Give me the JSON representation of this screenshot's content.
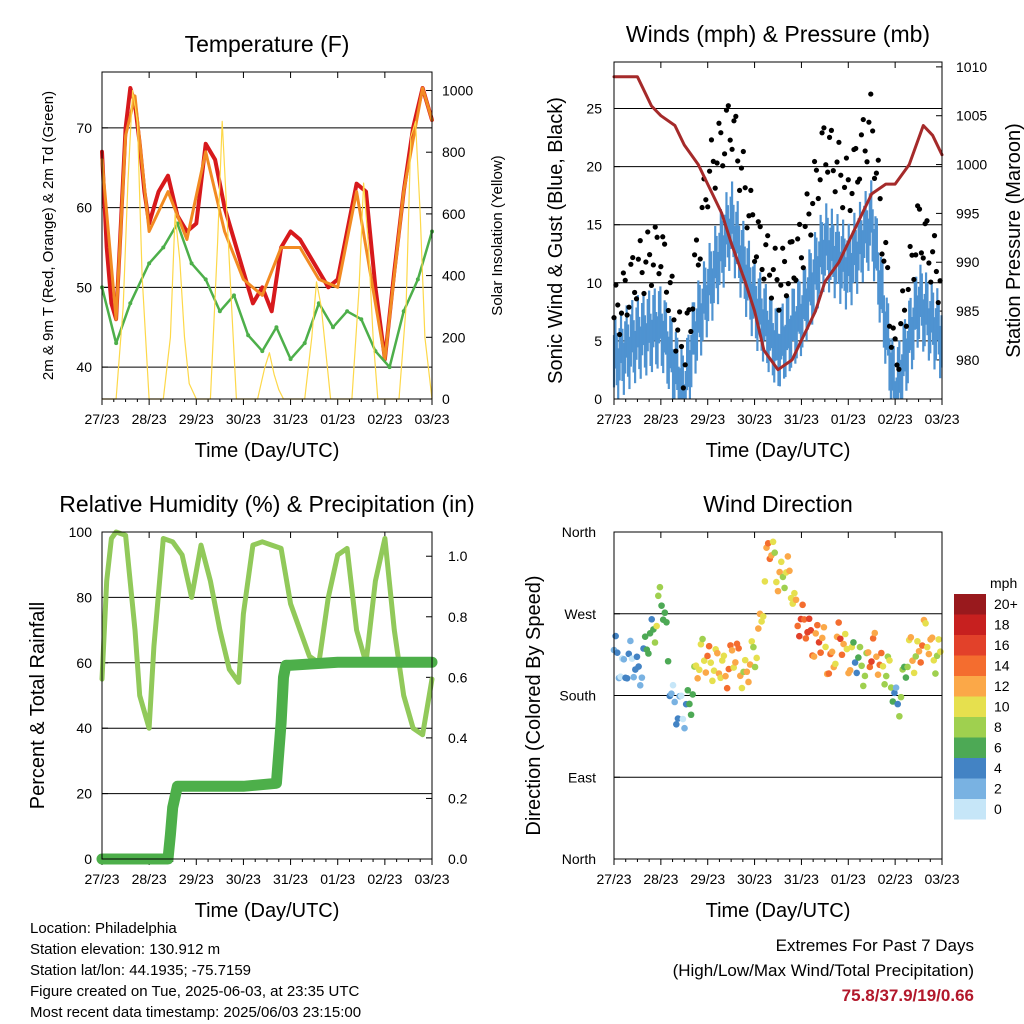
{
  "chart_data": [
    {
      "type": "line",
      "title": "Temperature (F)",
      "xlabel": "Time (Day/UTC)",
      "ylabel": "2m & 9m T (Red, Orange) & 2m Td (Green)",
      "y2label": "Solar Insolation (Yellow)",
      "ylim": [
        36,
        77
      ],
      "y2lim": [
        0,
        1060
      ],
      "yticks": [
        40,
        50,
        60,
        70
      ],
      "y2ticks": [
        0,
        200,
        400,
        600,
        800,
        1000
      ],
      "grid": true,
      "xticks": [
        "27/23",
        "28/23",
        "29/23",
        "30/23",
        "31/23",
        "01/23",
        "02/23",
        "03/23"
      ],
      "series": [
        {
          "axis": "y",
          "color": "#d7191c",
          "x": [
            0,
            0.1,
            0.2,
            0.3,
            0.4,
            0.5,
            0.6,
            0.7,
            0.8,
            0.9,
            1,
            1.2,
            1.4,
            1.6,
            1.8,
            2,
            2.2,
            2.4,
            2.6,
            2.8,
            3,
            3.2,
            3.4,
            3.6,
            3.8,
            4,
            4.2,
            4.4,
            4.6,
            4.8,
            5,
            5.2,
            5.4,
            5.6,
            5.8,
            6,
            6.2,
            6.4,
            6.6,
            6.8,
            7
          ],
          "y": [
            67,
            55,
            48,
            46,
            58,
            70,
            75,
            73,
            68,
            62,
            58,
            62,
            64,
            59,
            57,
            58,
            68,
            66,
            60,
            56,
            52,
            48,
            50,
            47,
            55,
            57,
            56,
            54,
            52,
            50,
            51,
            57,
            63,
            62,
            50,
            41,
            52,
            62,
            70,
            75,
            71
          ]
        },
        {
          "axis": "y",
          "color": "#f28b22",
          "x": [
            0,
            0.3,
            0.5,
            0.7,
            1,
            1.4,
            1.8,
            2.2,
            2.6,
            3,
            3.4,
            3.8,
            4.2,
            4.6,
            5,
            5.4,
            5.8,
            6,
            6.4,
            6.8,
            7
          ],
          "y": [
            66,
            46,
            69,
            74,
            57,
            62,
            56,
            67,
            57,
            51,
            49,
            55,
            55,
            51,
            50,
            62,
            48,
            41,
            62,
            75,
            71
          ]
        },
        {
          "axis": "y",
          "color": "#4daf4a",
          "x": [
            0,
            0.3,
            0.6,
            1,
            1.3,
            1.6,
            1.9,
            2.2,
            2.5,
            2.8,
            3.1,
            3.4,
            3.7,
            4,
            4.3,
            4.6,
            4.9,
            5.2,
            5.5,
            5.8,
            6.1,
            6.4,
            6.7,
            7
          ],
          "y": [
            50,
            43,
            48,
            53,
            55,
            58,
            53,
            51,
            47,
            49,
            44,
            42,
            45,
            41,
            43,
            48,
            45,
            47,
            46,
            42,
            40,
            47,
            51,
            57
          ]
        },
        {
          "axis": "y2",
          "color": "#fdd849",
          "x": [
            0,
            0.15,
            0.3,
            0.45,
            0.55,
            0.65,
            0.75,
            0.85,
            1,
            1.15,
            1.3,
            1.45,
            1.55,
            1.65,
            1.75,
            1.85,
            2,
            2.15,
            2.3,
            2.45,
            2.55,
            2.65,
            2.75,
            2.85,
            3,
            3.15,
            3.3,
            3.45,
            3.55,
            3.65,
            3.75,
            3.85,
            4,
            4.15,
            4.3,
            4.45,
            4.55,
            4.65,
            4.75,
            4.85,
            5,
            5.15,
            5.3,
            5.45,
            5.55,
            5.65,
            5.75,
            5.85,
            6,
            6.15,
            6.3,
            6.45,
            6.55,
            6.65,
            6.75,
            6.85,
            7
          ],
          "y": [
            0,
            0,
            0,
            300,
            700,
            1000,
            900,
            400,
            0,
            0,
            0,
            200,
            600,
            450,
            200,
            50,
            0,
            0,
            0,
            500,
            900,
            600,
            300,
            0,
            0,
            0,
            0,
            100,
            150,
            80,
            30,
            0,
            0,
            0,
            0,
            200,
            380,
            300,
            150,
            0,
            0,
            0,
            0,
            350,
            700,
            500,
            200,
            0,
            0,
            0,
            0,
            300,
            850,
            900,
            600,
            200,
            0
          ]
        }
      ]
    },
    {
      "type": "scatter",
      "title": "Winds (mph) & Pressure (mb)",
      "xlabel": "Time (Day/UTC)",
      "ylabel": "Sonic Wind & Gust (Blue, Black)",
      "y2label": "Station Pressure (Maroon)",
      "ylim": [
        0,
        29
      ],
      "y2lim": [
        976,
        1010.5
      ],
      "yticks": [
        0,
        5,
        10,
        15,
        20,
        25
      ],
      "y2ticks": [
        980,
        985,
        990,
        995,
        1000,
        1005,
        1010
      ],
      "grid": true,
      "xticks": [
        "27/23",
        "28/23",
        "29/23",
        "30/23",
        "31/23",
        "01/23",
        "02/23",
        "03/23"
      ],
      "wind_x": [
        0,
        0.5,
        1,
        1.5,
        1.7,
        2,
        2.5,
        3,
        3.5,
        4,
        4.5,
        5,
        5.5,
        6,
        6.5,
        7
      ],
      "wind_y": [
        4,
        6,
        7,
        1,
        6,
        10,
        16,
        9,
        5,
        8,
        14,
        12,
        16,
        1,
        9,
        6
      ],
      "gust_y": [
        7,
        11,
        13,
        3,
        10,
        19,
        24,
        14,
        10,
        13,
        22,
        18,
        24,
        3,
        15,
        10
      ],
      "pressure_x": [
        0,
        0.5,
        0.8,
        1,
        1.3,
        1.5,
        1.8,
        2,
        2.3,
        2.5,
        2.8,
        3,
        3.2,
        3.5,
        3.8,
        4,
        4.3,
        4.5,
        4.8,
        5,
        5.3,
        5.5,
        5.8,
        6,
        6.3,
        6.6,
        6.8,
        7
      ],
      "pressure_y": [
        1009,
        1009,
        1006,
        1005,
        1004,
        1002,
        1000,
        998,
        995,
        992,
        988,
        985,
        981,
        979,
        980,
        982,
        985,
        988,
        990,
        992,
        995,
        997,
        998,
        998,
        1000,
        1004,
        1003,
        1001
      ]
    },
    {
      "type": "line",
      "title": "Relative Humidity (%) & Precipitation (in)",
      "xlabel": "Time (Day/UTC)",
      "ylabel": "Percent & Total Rainfall",
      "ylim": [
        0,
        100
      ],
      "y2lim": [
        0,
        1.08
      ],
      "yticks": [
        0,
        20,
        40,
        60,
        80,
        100
      ],
      "y2ticks": [
        0.0,
        0.2,
        0.4,
        0.6,
        0.8,
        1.0
      ],
      "grid": true,
      "xticks": [
        "27/23",
        "28/23",
        "29/23",
        "30/23",
        "31/23",
        "01/23",
        "02/23",
        "03/23"
      ],
      "series": [
        {
          "axis": "y",
          "color": "#91c95a",
          "x": [
            0,
            0.1,
            0.2,
            0.3,
            0.5,
            0.7,
            0.8,
            1,
            1.1,
            1.3,
            1.5,
            1.7,
            1.9,
            2.1,
            2.3,
            2.5,
            2.7,
            2.9,
            3,
            3.2,
            3.4,
            3.6,
            3.8,
            4,
            4.2,
            4.4,
            4.6,
            4.8,
            5,
            5.2,
            5.4,
            5.6,
            5.8,
            6,
            6.2,
            6.4,
            6.6,
            6.8,
            7
          ],
          "y": [
            55,
            85,
            98,
            100,
            99,
            70,
            50,
            40,
            65,
            98,
            97,
            93,
            80,
            96,
            85,
            70,
            58,
            54,
            75,
            96,
            97,
            96,
            95,
            78,
            70,
            62,
            60,
            80,
            93,
            95,
            70,
            60,
            85,
            98,
            70,
            50,
            40,
            38,
            55
          ]
        },
        {
          "axis": "y2",
          "color": "#4daf4a",
          "x": [
            0,
            1.4,
            1.45,
            1.5,
            1.6,
            2,
            2.6,
            3,
            3.7,
            3.8,
            3.85,
            3.9,
            4,
            5,
            6,
            7
          ],
          "y": [
            0,
            0,
            0.08,
            0.17,
            0.24,
            0.24,
            0.24,
            0.24,
            0.25,
            0.45,
            0.6,
            0.64,
            0.64,
            0.65,
            0.65,
            0.65
          ]
        }
      ]
    },
    {
      "type": "scatter",
      "title": "Wind Direction",
      "xlabel": "Time (Day/UTC)",
      "ylabel": "Direction (Colored By Speed)",
      "ylim": [
        0,
        360
      ],
      "ytick_values": [
        0,
        90,
        180,
        270,
        360
      ],
      "yticks": [
        "North",
        "East",
        "South",
        "West",
        "North"
      ],
      "grid": true,
      "xticks": [
        "27/23",
        "28/23",
        "29/23",
        "30/23",
        "31/23",
        "01/23",
        "02/23",
        "03/23"
      ],
      "colorbar_title": "mph",
      "colorbar_labels": [
        "20+",
        "18",
        "16",
        "14",
        "12",
        "10",
        "8",
        "6",
        "4",
        "2",
        "0"
      ],
      "colorbar_colors": [
        "#99191d",
        "#c7201f",
        "#e2412a",
        "#f46d2f",
        "#fba848",
        "#e6e04e",
        "#9fd04f",
        "#4da955",
        "#4383c4",
        "#79b2e2",
        "#c6e6f8"
      ],
      "x": [
        0,
        0.5,
        0.8,
        1,
        1.2,
        1.5,
        1.7,
        2,
        2.2,
        2.5,
        2.8,
        3,
        3.3,
        3.5,
        3.8,
        4,
        4.3,
        4.6,
        4.9,
        5.2,
        5.5,
        5.8,
        6,
        6.3,
        6.6,
        6.9,
        7
      ],
      "y": [
        220,
        210,
        240,
        300,
        190,
        150,
        200,
        230,
        205,
        220,
        210,
        215,
        340,
        320,
        300,
        255,
        245,
        220,
        240,
        210,
        225,
        215,
        170,
        220,
        240,
        230,
        210
      ],
      "speed": [
        2,
        3,
        6,
        8,
        3,
        2,
        8,
        12,
        10,
        13,
        10,
        10,
        12,
        10,
        10,
        16,
        14,
        12,
        14,
        4,
        14,
        10,
        4,
        10,
        12,
        10,
        8
      ]
    }
  ],
  "footer": {
    "location": "Location: Philadelphia",
    "elevation": "Station elevation: 130.912 m",
    "latlon": "Station lat/lon: 44.1935; -75.7159",
    "created": "Figure created on Tue, 2025-06-03, at 23:35 UTC",
    "recent": "Most recent data timestamp: 2025/06/03 23:15:00",
    "extremes_title": "Extremes For Past 7 Days",
    "extremes_sub": "(High/Low/Max Wind/Total Precipitation)",
    "extremes_values": "75.8/37.9/19/0.66",
    "extremes_color": "#b2182b"
  }
}
